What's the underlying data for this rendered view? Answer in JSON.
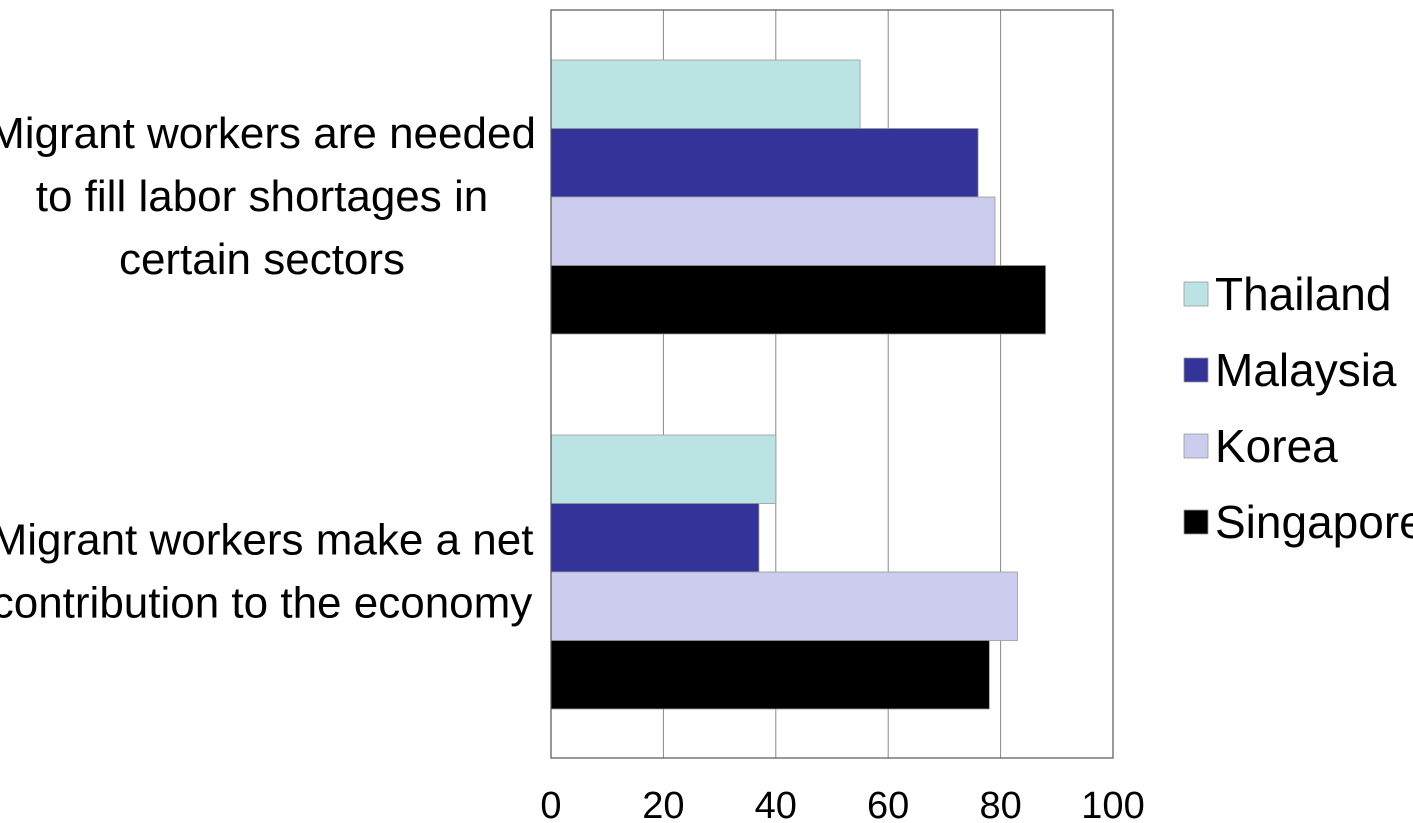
{
  "chart_data": {
    "type": "bar",
    "orientation": "horizontal",
    "title": "",
    "xlabel": "",
    "ylabel": "",
    "categories": [
      [
        "Migrant workers are needed",
        "to fill labor shortages in",
        "certain sectors"
      ],
      [
        "Migrant workers make a net",
        "contribution to the economy"
      ]
    ],
    "series": [
      {
        "name": "Thailand",
        "color": "#bce3e3",
        "values": [
          55,
          40
        ]
      },
      {
        "name": "Malaysia",
        "color": "#333399",
        "values": [
          76,
          37
        ]
      },
      {
        "name": "Korea",
        "color": "#ccccee",
        "values": [
          79,
          83
        ]
      },
      {
        "name": "Singapore",
        "color": "#000000",
        "values": [
          88,
          78
        ]
      }
    ],
    "xlim": [
      0,
      100
    ],
    "xticks": [
      0,
      20,
      40,
      60,
      80,
      100
    ],
    "xtick_labels": [
      "0",
      "20",
      "40",
      "60",
      "80",
      "100"
    ],
    "grid": true,
    "legend_position": "right"
  }
}
